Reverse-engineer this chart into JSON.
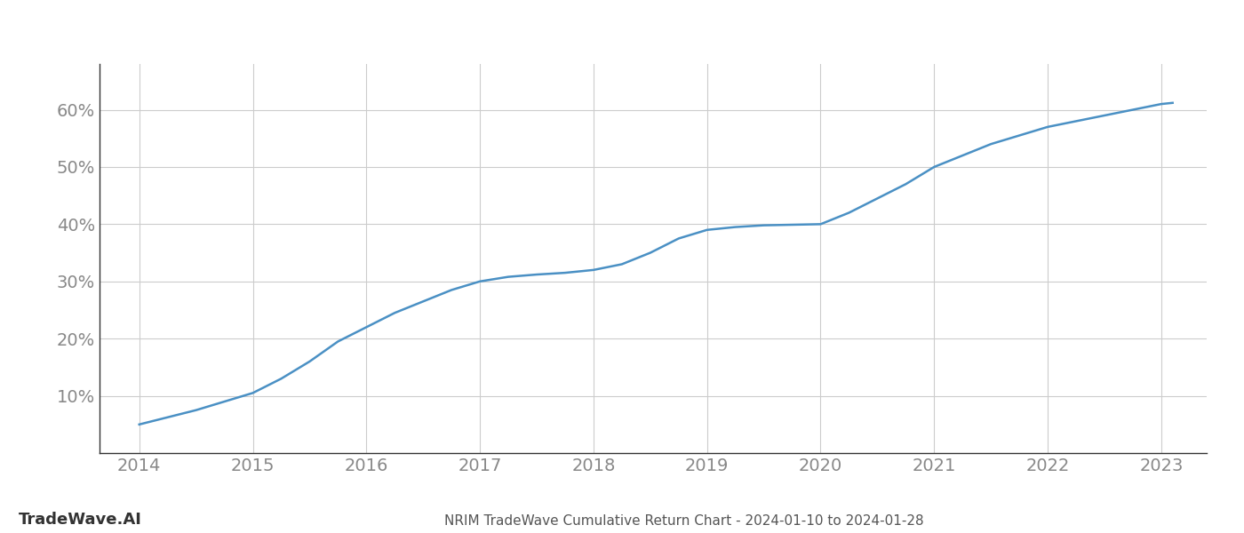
{
  "x_values": [
    2014.0,
    2014.2,
    2014.5,
    2014.75,
    2015.0,
    2015.25,
    2015.5,
    2015.75,
    2016.0,
    2016.25,
    2016.5,
    2016.75,
    2017.0,
    2017.25,
    2017.5,
    2017.75,
    2018.0,
    2018.25,
    2018.5,
    2018.75,
    2019.0,
    2019.25,
    2019.5,
    2019.75,
    2020.0,
    2020.25,
    2020.5,
    2020.75,
    2021.0,
    2021.25,
    2021.5,
    2021.75,
    2022.0,
    2022.25,
    2022.5,
    2022.75,
    2023.0,
    2023.1
  ],
  "y_values": [
    5.0,
    6.0,
    7.5,
    9.0,
    10.5,
    13.0,
    16.0,
    19.5,
    22.0,
    24.5,
    26.5,
    28.5,
    30.0,
    30.8,
    31.2,
    31.5,
    32.0,
    33.0,
    35.0,
    37.5,
    39.0,
    39.5,
    39.8,
    39.9,
    40.0,
    42.0,
    44.5,
    47.0,
    50.0,
    52.0,
    54.0,
    55.5,
    57.0,
    58.0,
    59.0,
    60.0,
    61.0,
    61.2
  ],
  "line_color": "#4a90c4",
  "line_width": 1.8,
  "background_color": "#ffffff",
  "grid_color": "#cccccc",
  "title": "NRIM TradeWave Cumulative Return Chart - 2024-01-10 to 2024-01-28",
  "watermark": "TradeWave.AI",
  "xlim": [
    2013.65,
    2023.4
  ],
  "ylim": [
    0,
    68
  ],
  "yticks": [
    10,
    20,
    30,
    40,
    50,
    60
  ],
  "xticks": [
    2014,
    2015,
    2016,
    2017,
    2018,
    2019,
    2020,
    2021,
    2022,
    2023
  ],
  "title_fontsize": 11,
  "watermark_fontsize": 13,
  "tick_fontsize": 14
}
